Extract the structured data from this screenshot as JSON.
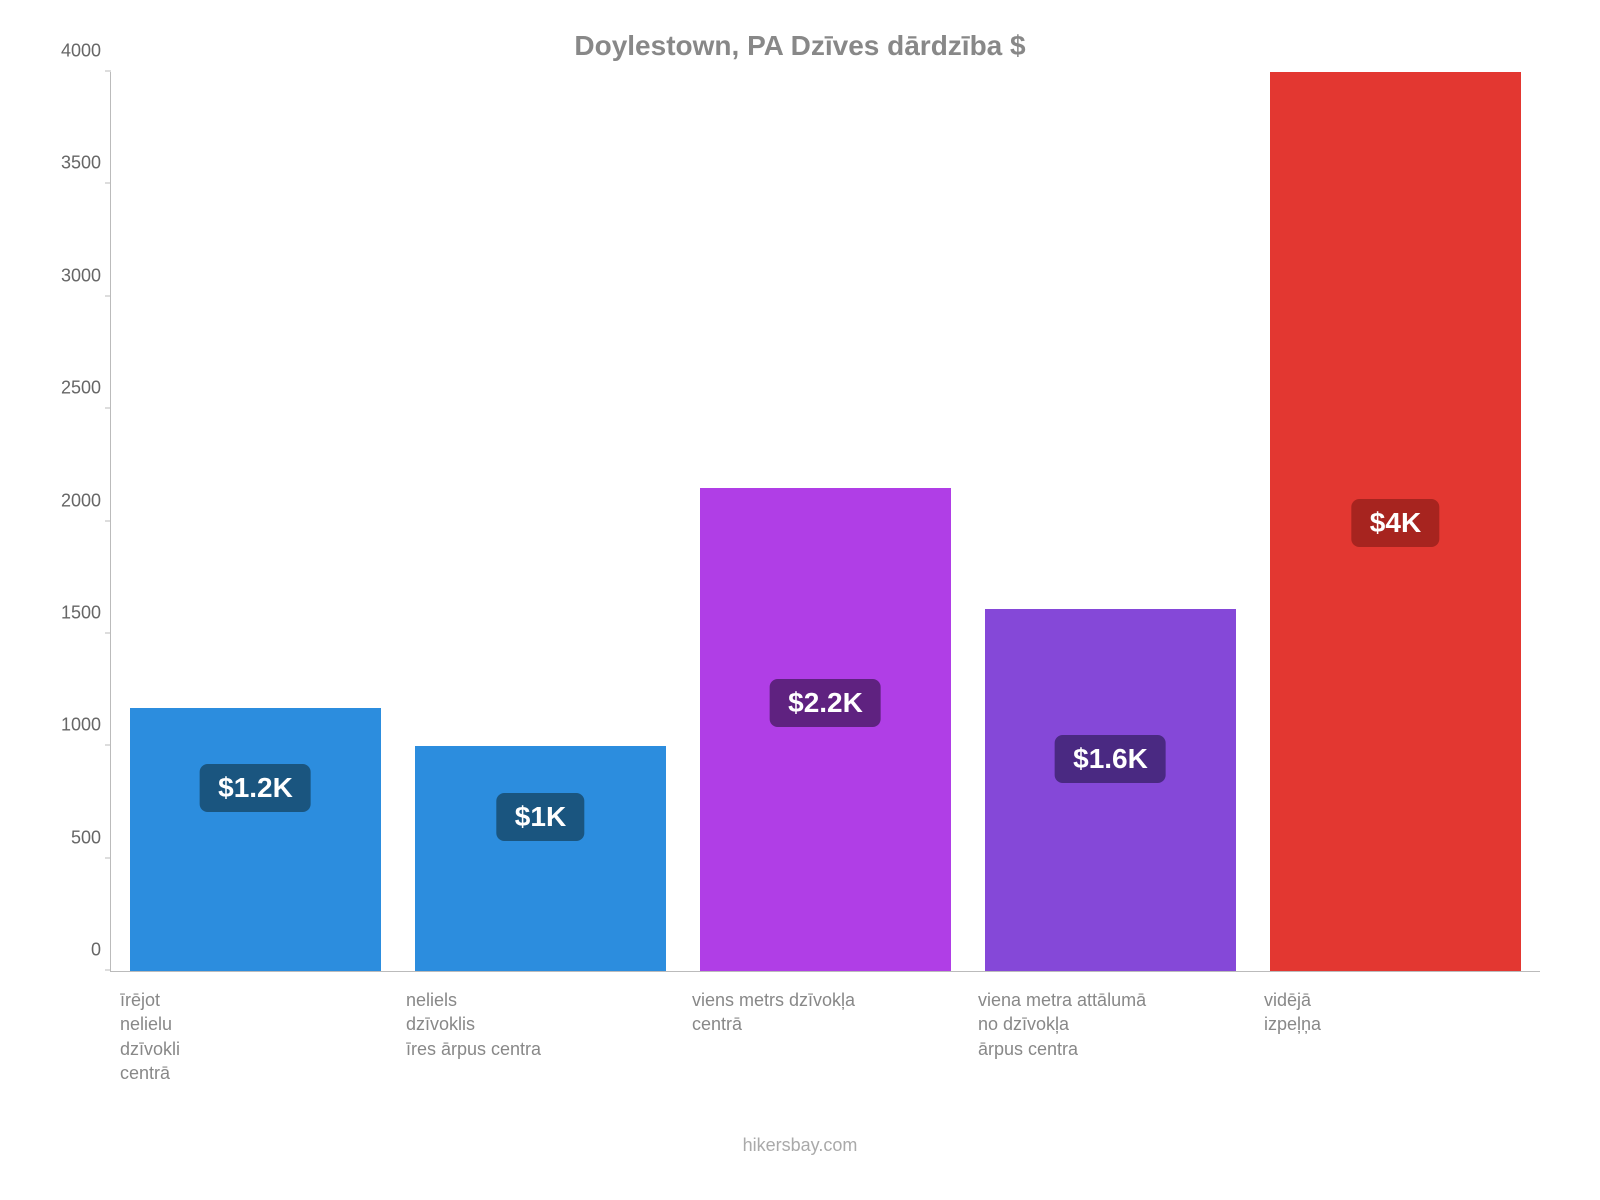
{
  "chart": {
    "type": "bar",
    "title": "Doylestown, PA Dzīves dārdzība $",
    "title_fontsize": 28,
    "title_color": "#888888",
    "background_color": "#ffffff",
    "axis_color": "#bbbbbb",
    "tick_label_color": "#666666",
    "x_label_color": "#888888",
    "label_fontsize": 18,
    "badge_fontsize": 28,
    "ylim": [
      0,
      4000
    ],
    "ytick_step": 500,
    "yticks": [
      0,
      500,
      1000,
      1500,
      2000,
      2500,
      3000,
      3500,
      4000
    ],
    "bar_width_pct": 88,
    "bars": [
      {
        "category": "īrējot\nnelielu\ndzīvokli\ncentrā",
        "value": 1170,
        "bar_color": "#2c8dde",
        "badge_text": "$1.2K",
        "badge_bg": "#1a557f",
        "badge_top_value": 920
      },
      {
        "category": "neliels\ndzīvoklis\nīres ārpus centra",
        "value": 1000,
        "bar_color": "#2c8dde",
        "badge_text": "$1K",
        "badge_bg": "#1a557f",
        "badge_top_value": 790
      },
      {
        "category": "viens metrs dzīvokļa\ncentrā",
        "value": 2150,
        "bar_color": "#b03ee6",
        "badge_text": "$2.2K",
        "badge_bg": "#5f2280",
        "badge_top_value": 1300
      },
      {
        "category": "viena metra attālumā\nno dzīvokļa\nārpus centra",
        "value": 1610,
        "bar_color": "#8548d8",
        "badge_text": "$1.6K",
        "badge_bg": "#4a2982",
        "badge_top_value": 1050
      },
      {
        "category": "vidējā\nizpeļņa",
        "value": 4000,
        "bar_color": "#e33731",
        "badge_text": "$4K",
        "badge_bg": "#a7241f",
        "badge_top_value": 2100
      }
    ],
    "attribution": "hikersbay.com"
  }
}
